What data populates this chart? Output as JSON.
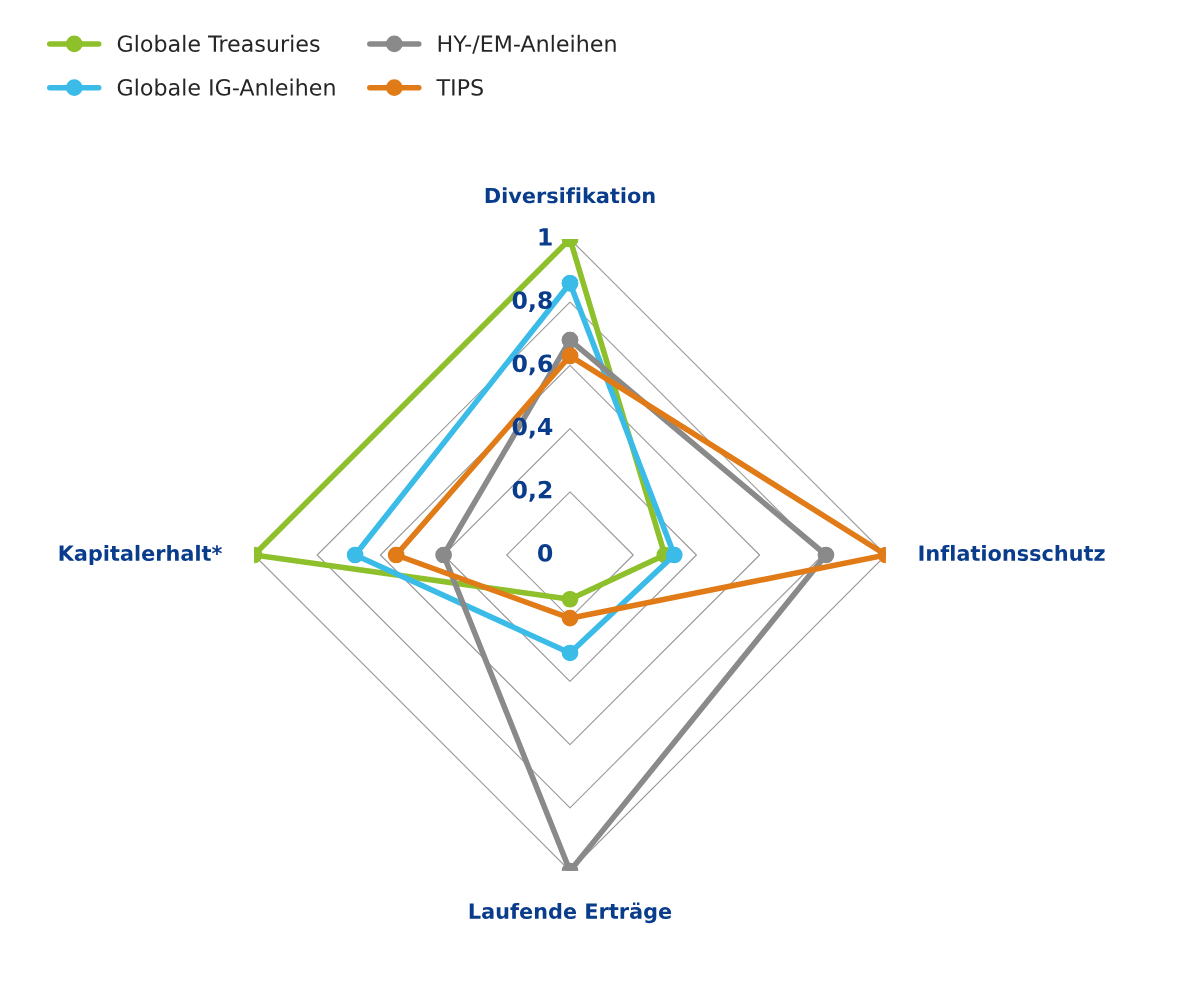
{
  "chart_data": {
    "type": "radar",
    "categories": [
      "Diversifikation",
      "Inflationsschutz",
      "Laufende Erträge",
      "Kapitalerhalt*"
    ],
    "series": [
      {
        "name": "Globale Treasuries",
        "color": "#8dc02a",
        "values": [
          1.0,
          0.3,
          0.14,
          1.0
        ]
      },
      {
        "name": "Globale IG-Anleihen",
        "color": "#3bbce8",
        "values": [
          0.86,
          0.33,
          0.31,
          0.68
        ]
      },
      {
        "name": "HY-/EM-Anleihen",
        "color": "#8a8a8a",
        "values": [
          0.68,
          0.81,
          1.0,
          0.4
        ]
      },
      {
        "name": "TIPS",
        "color": "#e07b17",
        "values": [
          0.63,
          1.0,
          0.2,
          0.55
        ]
      }
    ],
    "ylim": [
      0,
      1
    ],
    "yticks": [
      0,
      {
        "value": 0.2,
        "label": "0,2"
      },
      {
        "value": 0.4,
        "label": "0,4"
      },
      {
        "value": 0.6,
        "label": "0,6"
      },
      {
        "value": 0.8,
        "label": "0,8"
      },
      1
    ],
    "grid": true,
    "legend": "top left",
    "marker": "circle",
    "line_style": "solid"
  }
}
